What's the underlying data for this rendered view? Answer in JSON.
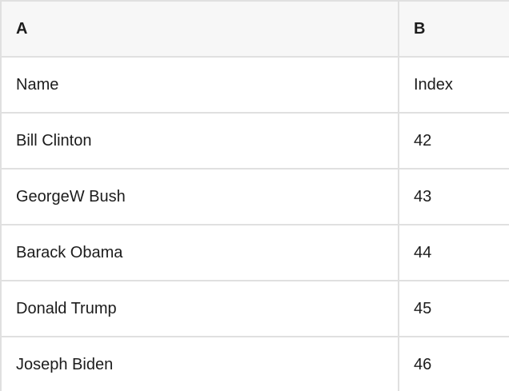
{
  "table": {
    "columns": [
      {
        "key": "A",
        "label": "A"
      },
      {
        "key": "B",
        "label": "B"
      }
    ],
    "rows": [
      {
        "a": "Name",
        "b": "Index"
      },
      {
        "a": "Bill Clinton",
        "b": "42"
      },
      {
        "a": "GeorgeW Bush",
        "b": "43"
      },
      {
        "a": "Barack Obama",
        "b": "44"
      },
      {
        "a": "Donald Trump",
        "b": "45"
      },
      {
        "a": "Joseph Biden",
        "b": "46"
      }
    ]
  },
  "colors": {
    "header_bg": "#f7f7f7",
    "grid_border": "#e0e0e0",
    "cell_bg": "#ffffff",
    "text": "#1c1c1c"
  }
}
